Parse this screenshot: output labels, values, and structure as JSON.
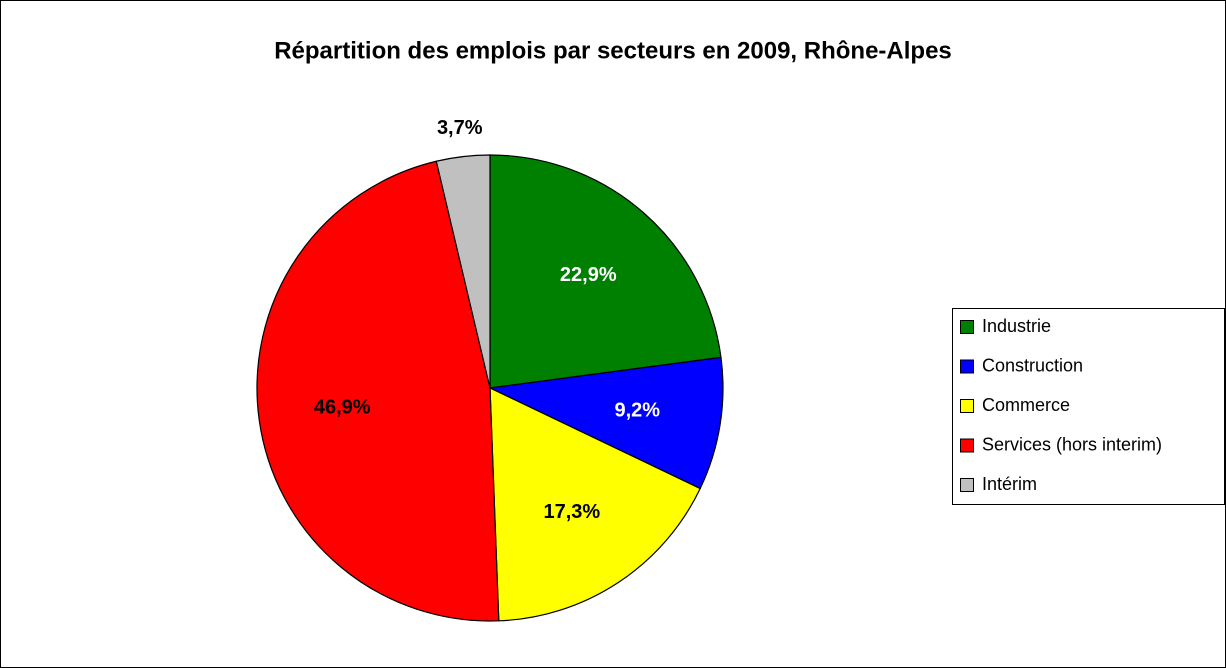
{
  "chart_data": {
    "type": "pie",
    "title": "Répartition des emplois par secteurs en 2009, Rhône-Alpes",
    "categories": [
      "Industrie",
      "Construction",
      "Commerce",
      "Services (hors interim)",
      "Intérim"
    ],
    "values": [
      22.9,
      9.2,
      17.3,
      46.9,
      3.7
    ],
    "value_labels": [
      "22,9%",
      "9,2%",
      "17,3%",
      "46,9%",
      "3,7%"
    ],
    "colors": [
      "#008000",
      "#0000ff",
      "#ffff00",
      "#ff0000",
      "#c0c0c0"
    ],
    "label_colors": [
      "#ffffff",
      "#ffffff",
      "#000000",
      "#000000",
      "#000000"
    ],
    "legend": "right"
  }
}
